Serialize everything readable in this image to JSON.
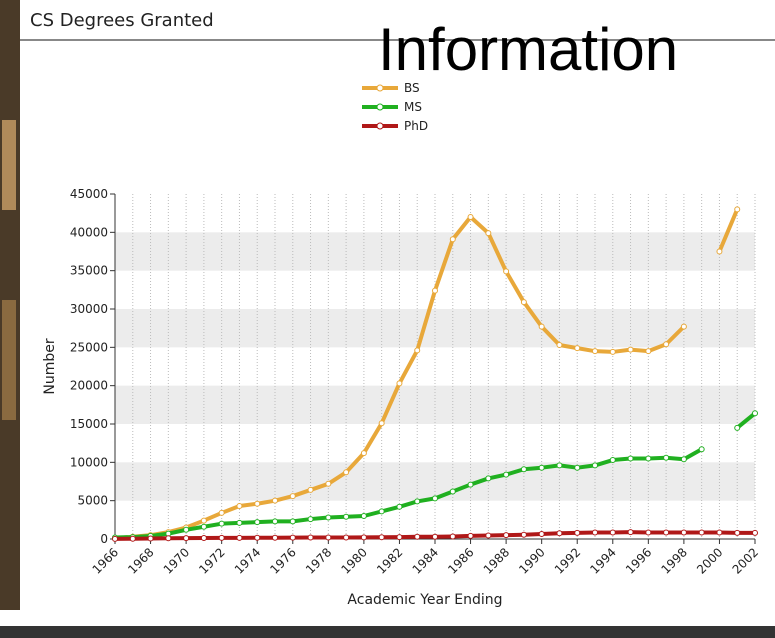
{
  "overlay_text": "Information",
  "chart_data": {
    "type": "line",
    "title": "CS Degrees Granted",
    "x_label": "Academic Year Ending",
    "y_label": "Number",
    "x": [
      1966,
      1967,
      1968,
      1969,
      1970,
      1971,
      1972,
      1973,
      1974,
      1975,
      1976,
      1977,
      1978,
      1979,
      1980,
      1981,
      1982,
      1983,
      1984,
      1985,
      1986,
      1987,
      1988,
      1989,
      1990,
      1991,
      1992,
      1993,
      1994,
      1995,
      1996,
      1997,
      1998,
      1999,
      2000,
      2001,
      2002
    ],
    "series": [
      {
        "name": "BS",
        "color": "#e8a83a",
        "values": [
          100,
          300,
          500,
          900,
          1500,
          2400,
          3400,
          4300,
          4600,
          5000,
          5600,
          6400,
          7200,
          8700,
          11200,
          15100,
          20300,
          24600,
          32400,
          39100,
          42000,
          39900,
          34900,
          30900,
          27700,
          25300,
          24900,
          24500,
          24400,
          24700,
          24500,
          25400,
          27700,
          null,
          37500,
          43000,
          null
        ]
      },
      {
        "name": "MS",
        "color": "#20b020",
        "values": [
          200,
          250,
          400,
          700,
          1200,
          1600,
          2000,
          2100,
          2200,
          2300,
          2300,
          2600,
          2800,
          2900,
          3000,
          3600,
          4200,
          4900,
          5300,
          6200,
          7100,
          7900,
          8400,
          9100,
          9300,
          9600,
          9300,
          9600,
          10300,
          10500,
          10500,
          10600,
          10400,
          11700,
          null,
          14500,
          16400
        ]
      },
      {
        "name": "PhD",
        "color": "#b01818",
        "values": [
          20,
          40,
          60,
          90,
          120,
          130,
          140,
          150,
          160,
          170,
          180,
          190,
          200,
          200,
          210,
          230,
          250,
          290,
          300,
          330,
          400,
          450,
          500,
          550,
          650,
          750,
          800,
          850,
          850,
          900,
          850,
          850,
          850,
          850,
          850,
          800,
          800
        ]
      }
    ],
    "xlim": [
      1966,
      2002
    ],
    "xticks": [
      1966,
      1968,
      1970,
      1972,
      1974,
      1976,
      1978,
      1980,
      1982,
      1984,
      1986,
      1988,
      1990,
      1992,
      1994,
      1996,
      1998,
      2000,
      2002
    ],
    "ylim": [
      0,
      45000
    ],
    "yticks": [
      0,
      5000,
      10000,
      15000,
      20000,
      25000,
      30000,
      35000,
      40000,
      45000
    ],
    "grid": true,
    "legend": "top"
  }
}
